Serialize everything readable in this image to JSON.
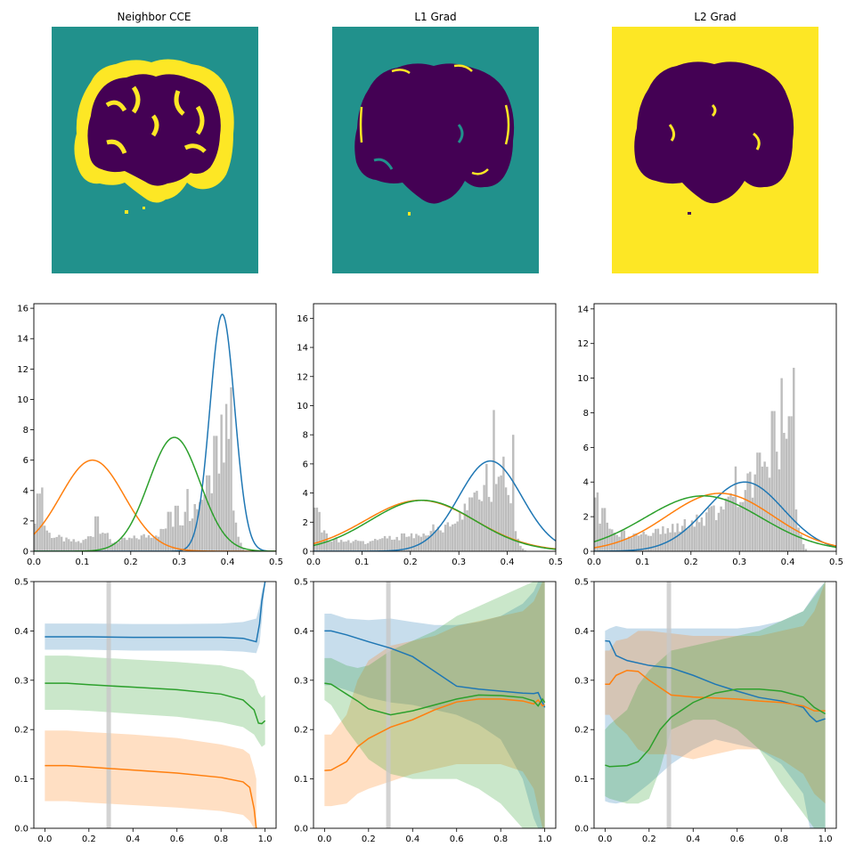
{
  "colors": {
    "blue": "#1f77b4",
    "orange": "#ff7f0e",
    "green": "#2ca02c",
    "hist": "#bdbdbd",
    "viridis_dark": "#440154",
    "viridis_mid": "#21918c",
    "viridis_yellow": "#fde725",
    "vline": "#c8c8c8"
  },
  "chart_data": [
    {
      "type": "image",
      "panel": "img1",
      "title": "Neighbor CCE",
      "background": "teal",
      "brain_edge": "yellow",
      "brain_fill": "purple"
    },
    {
      "type": "image",
      "panel": "img2",
      "title": "L1 Grad",
      "background": "teal",
      "brain_edge": "teal-yellow speckle",
      "brain_fill": "purple"
    },
    {
      "type": "image",
      "panel": "img3",
      "title": "L2 Grad",
      "background": "yellow",
      "brain_edge": "purple",
      "brain_fill": "purple"
    },
    {
      "type": "histogram+gaussians",
      "panel": "h1",
      "xlim": [
        0,
        0.5
      ],
      "ylim": [
        0,
        16.3
      ],
      "xticks": [
        "0.0",
        "0.1",
        "0.2",
        "0.3",
        "0.4",
        "0.5"
      ],
      "yticks": [
        "0",
        "2",
        "4",
        "6",
        "8",
        "10",
        "12",
        "14",
        "16"
      ],
      "gaussians": [
        {
          "color": "blue",
          "mu": 0.389,
          "sigma": 0.0256,
          "peak": 15.6
        },
        {
          "color": "orange",
          "mu": 0.121,
          "sigma": 0.066,
          "peak": 6.0
        },
        {
          "color": "green",
          "mu": 0.29,
          "sigma": 0.053,
          "peak": 7.5
        }
      ],
      "hist_start": [
        [
          0,
          2.2
        ],
        [
          0.01,
          3.1
        ],
        [
          0.02,
          2.0
        ],
        [
          0.03,
          1.2
        ],
        [
          0.04,
          1.0
        ],
        [
          0.05,
          0.9
        ],
        [
          0.07,
          0.7
        ],
        [
          0.1,
          0.6
        ],
        [
          0.14,
          1.6
        ],
        [
          0.16,
          0.6
        ],
        [
          0.2,
          0.8
        ],
        [
          0.26,
          1.2
        ],
        [
          0.28,
          1.8
        ],
        [
          0.3,
          2.0
        ],
        [
          0.32,
          2.4
        ],
        [
          0.34,
          3.3
        ],
        [
          0.36,
          4.4
        ],
        [
          0.38,
          6.0
        ],
        [
          0.4,
          7.5
        ],
        [
          0.41,
          4.0
        ],
        [
          0.42,
          1.5
        ],
        [
          0.43,
          0.3
        ],
        [
          0.44,
          0
        ]
      ],
      "hist_spikes": [
        [
          0.01,
          3.8
        ],
        [
          0.016,
          4.2
        ],
        [
          0.13,
          2.3
        ],
        [
          0.28,
          2.6
        ],
        [
          0.295,
          3.0
        ],
        [
          0.318,
          4.1
        ],
        [
          0.36,
          5.0
        ],
        [
          0.375,
          7.6
        ],
        [
          0.388,
          9.0
        ],
        [
          0.396,
          9.7
        ],
        [
          0.407,
          10.8
        ]
      ]
    },
    {
      "type": "histogram+gaussians",
      "panel": "h2",
      "xlim": [
        0,
        0.5
      ],
      "ylim": [
        0,
        17
      ],
      "xticks": [
        "0.0",
        "0.1",
        "0.2",
        "0.3",
        "0.4",
        "0.5"
      ],
      "yticks": [
        "0",
        "2",
        "4",
        "6",
        "8",
        "10",
        "12",
        "14",
        "16"
      ],
      "gaussians": [
        {
          "color": "blue",
          "mu": 0.365,
          "sigma": 0.065,
          "peak": 6.2
        },
        {
          "color": "orange",
          "mu": 0.22,
          "sigma": 0.113,
          "peak": 3.5
        },
        {
          "color": "green",
          "mu": 0.225,
          "sigma": 0.108,
          "peak": 3.5
        }
      ],
      "hist_start": [
        [
          0,
          2.2
        ],
        [
          0.01,
          1.8
        ],
        [
          0.03,
          0.9
        ],
        [
          0.06,
          0.7
        ],
        [
          0.1,
          0.6
        ],
        [
          0.15,
          0.9
        ],
        [
          0.2,
          1.1
        ],
        [
          0.25,
          1.5
        ],
        [
          0.28,
          1.8
        ],
        [
          0.3,
          2.3
        ],
        [
          0.32,
          3.0
        ],
        [
          0.34,
          3.6
        ],
        [
          0.36,
          4.2
        ],
        [
          0.38,
          5.0
        ],
        [
          0.4,
          4.3
        ],
        [
          0.41,
          2.6
        ],
        [
          0.42,
          1.0
        ],
        [
          0.43,
          0.3
        ],
        [
          0.44,
          0
        ]
      ],
      "hist_spikes": [
        [
          0.005,
          3.0
        ],
        [
          0.012,
          2.7
        ],
        [
          0.325,
          3.7
        ],
        [
          0.357,
          6.0
        ],
        [
          0.374,
          9.7
        ],
        [
          0.393,
          6.5
        ],
        [
          0.414,
          8.0
        ]
      ]
    },
    {
      "type": "histogram+gaussians",
      "panel": "h3",
      "xlim": [
        0,
        0.5
      ],
      "ylim": [
        0,
        14.3
      ],
      "xticks": [
        "0.0",
        "0.1",
        "0.2",
        "0.3",
        "0.4",
        "0.5"
      ],
      "yticks": [
        "0",
        "2",
        "4",
        "6",
        "8",
        "10",
        "12",
        "14"
      ],
      "gaussians": [
        {
          "color": "blue",
          "mu": 0.311,
          "sigma": 0.08,
          "peak": 4.0
        },
        {
          "color": "orange",
          "mu": 0.26,
          "sigma": 0.11,
          "peak": 3.35
        },
        {
          "color": "green",
          "mu": 0.225,
          "sigma": 0.12,
          "peak": 3.2
        }
      ],
      "hist_start": [
        [
          0,
          3.0
        ],
        [
          0.01,
          2.0
        ],
        [
          0.03,
          1.3
        ],
        [
          0.05,
          1.0
        ],
        [
          0.1,
          1.0
        ],
        [
          0.15,
          1.2
        ],
        [
          0.2,
          1.6
        ],
        [
          0.25,
          2.2
        ],
        [
          0.3,
          3.0
        ],
        [
          0.32,
          3.8
        ],
        [
          0.35,
          4.6
        ],
        [
          0.38,
          5.6
        ],
        [
          0.4,
          6.0
        ],
        [
          0.41,
          4.6
        ],
        [
          0.42,
          2.2
        ],
        [
          0.43,
          0.5
        ],
        [
          0.44,
          0
        ]
      ],
      "hist_spikes": [
        [
          0.006,
          3.4
        ],
        [
          0.02,
          2.5
        ],
        [
          0.294,
          4.9
        ],
        [
          0.34,
          5.7
        ],
        [
          0.37,
          8.1
        ],
        [
          0.388,
          10.0
        ],
        [
          0.4,
          6.5
        ],
        [
          0.405,
          7.8
        ],
        [
          0.412,
          10.6
        ]
      ]
    },
    {
      "type": "line+bands",
      "panel": "l1",
      "xlim": [
        -0.05,
        1.05
      ],
      "ylim": [
        0,
        0.5
      ],
      "xticks": [
        "0.0",
        "0.2",
        "0.4",
        "0.6",
        "0.8",
        "1.0"
      ],
      "yticks": [
        "0.0",
        "0.1",
        "0.2",
        "0.3",
        "0.4",
        "0.5"
      ],
      "vline_x": 0.29,
      "series": [
        {
          "color": "blue",
          "x": [
            0,
            0.2,
            0.4,
            0.6,
            0.8,
            0.9,
            0.96,
            0.975,
            0.985,
            1.0
          ],
          "y": [
            0.388,
            0.388,
            0.387,
            0.387,
            0.387,
            0.385,
            0.378,
            0.415,
            0.46,
            0.5
          ],
          "lo": [
            0.362,
            0.362,
            0.36,
            0.36,
            0.36,
            0.358,
            0.355,
            0.375,
            0.42,
            0.5
          ],
          "hi": [
            0.415,
            0.415,
            0.414,
            0.414,
            0.415,
            0.418,
            0.425,
            0.45,
            0.48,
            0.5
          ]
        },
        {
          "color": "green",
          "x": [
            0,
            0.1,
            0.2,
            0.4,
            0.6,
            0.8,
            0.9,
            0.95,
            0.97,
            0.985,
            1.0
          ],
          "y": [
            0.294,
            0.294,
            0.291,
            0.286,
            0.281,
            0.272,
            0.26,
            0.24,
            0.213,
            0.212,
            0.218
          ],
          "lo": [
            0.24,
            0.24,
            0.238,
            0.232,
            0.226,
            0.215,
            0.205,
            0.19,
            0.175,
            0.165,
            0.17
          ],
          "hi": [
            0.35,
            0.35,
            0.347,
            0.342,
            0.337,
            0.33,
            0.32,
            0.3,
            0.275,
            0.265,
            0.27
          ]
        },
        {
          "color": "orange",
          "x": [
            0,
            0.1,
            0.2,
            0.4,
            0.6,
            0.8,
            0.9,
            0.93,
            0.95,
            0.96
          ],
          "y": [
            0.127,
            0.127,
            0.124,
            0.118,
            0.112,
            0.103,
            0.094,
            0.083,
            0.04,
            0.0
          ],
          "lo": [
            0.055,
            0.055,
            0.052,
            0.047,
            0.042,
            0.035,
            0.027,
            0.015,
            0.0,
            0.0
          ],
          "hi": [
            0.198,
            0.198,
            0.195,
            0.19,
            0.183,
            0.17,
            0.16,
            0.15,
            0.12,
            0.1
          ]
        }
      ]
    },
    {
      "type": "line+bands",
      "panel": "l2",
      "xlim": [
        -0.05,
        1.05
      ],
      "ylim": [
        0,
        0.5
      ],
      "xticks": [
        "0.0",
        "0.2",
        "0.4",
        "0.6",
        "0.8",
        "1.0"
      ],
      "yticks": [
        "0.0",
        "0.1",
        "0.2",
        "0.3",
        "0.4",
        "0.5"
      ],
      "vline_x": 0.29,
      "series": [
        {
          "color": "blue",
          "x": [
            0,
            0.03,
            0.1,
            0.2,
            0.3,
            0.4,
            0.5,
            0.6,
            0.7,
            0.8,
            0.9,
            0.95,
            0.97,
            0.99,
            1.0
          ],
          "y": [
            0.4,
            0.4,
            0.392,
            0.378,
            0.365,
            0.348,
            0.318,
            0.288,
            0.282,
            0.278,
            0.274,
            0.273,
            0.275,
            0.255,
            0.245
          ],
          "lo": [
            0.29,
            0.29,
            0.28,
            0.265,
            0.255,
            0.25,
            0.24,
            0.23,
            0.21,
            0.18,
            0.1,
            0.02,
            0.0,
            0.0,
            0.0
          ],
          "hi": [
            0.435,
            0.435,
            0.425,
            0.422,
            0.425,
            0.418,
            0.412,
            0.412,
            0.418,
            0.43,
            0.455,
            0.48,
            0.5,
            0.5,
            0.5
          ]
        },
        {
          "color": "orange",
          "x": [
            0,
            0.03,
            0.1,
            0.15,
            0.2,
            0.3,
            0.4,
            0.5,
            0.6,
            0.7,
            0.8,
            0.9,
            0.95,
            0.97,
            0.99,
            1.0
          ],
          "y": [
            0.117,
            0.118,
            0.135,
            0.165,
            0.182,
            0.205,
            0.22,
            0.24,
            0.256,
            0.262,
            0.262,
            0.258,
            0.252,
            0.26,
            0.248,
            0.25
          ],
          "lo": [
            0.045,
            0.045,
            0.05,
            0.07,
            0.08,
            0.095,
            0.11,
            0.12,
            0.13,
            0.13,
            0.13,
            0.115,
            0.08,
            0.04,
            0.0,
            0.0
          ],
          "hi": [
            0.19,
            0.19,
            0.23,
            0.3,
            0.34,
            0.37,
            0.38,
            0.39,
            0.41,
            0.42,
            0.43,
            0.44,
            0.46,
            0.48,
            0.5,
            0.5
          ]
        },
        {
          "color": "green",
          "x": [
            0,
            0.03,
            0.1,
            0.15,
            0.2,
            0.3,
            0.4,
            0.5,
            0.6,
            0.7,
            0.8,
            0.9,
            0.95,
            0.97,
            0.99,
            1.0
          ],
          "y": [
            0.294,
            0.292,
            0.272,
            0.258,
            0.242,
            0.23,
            0.238,
            0.25,
            0.262,
            0.27,
            0.269,
            0.265,
            0.258,
            0.248,
            0.262,
            0.255
          ],
          "lo": [
            0.26,
            0.25,
            0.2,
            0.17,
            0.14,
            0.11,
            0.1,
            0.1,
            0.1,
            0.08,
            0.05,
            0.0,
            0.0,
            0.0,
            0.0,
            0.0
          ],
          "hi": [
            0.345,
            0.345,
            0.33,
            0.325,
            0.33,
            0.36,
            0.38,
            0.4,
            0.43,
            0.45,
            0.47,
            0.49,
            0.5,
            0.5,
            0.5,
            0.5
          ]
        }
      ]
    },
    {
      "type": "line+bands",
      "panel": "l3",
      "xlim": [
        -0.05,
        1.05
      ],
      "ylim": [
        0,
        0.5
      ],
      "xticks": [
        "0.0",
        "0.2",
        "0.4",
        "0.6",
        "0.8",
        "1.0"
      ],
      "yticks": [
        "0.0",
        "0.1",
        "0.2",
        "0.3",
        "0.4",
        "0.5"
      ],
      "vline_x": 0.29,
      "series": [
        {
          "color": "blue",
          "x": [
            0,
            0.02,
            0.05,
            0.1,
            0.2,
            0.3,
            0.4,
            0.5,
            0.6,
            0.7,
            0.8,
            0.9,
            0.93,
            0.96,
            1.0
          ],
          "y": [
            0.38,
            0.379,
            0.35,
            0.34,
            0.33,
            0.325,
            0.31,
            0.292,
            0.278,
            0.265,
            0.258,
            0.245,
            0.228,
            0.216,
            0.222
          ],
          "lo": [
            0.055,
            0.052,
            0.05,
            0.055,
            0.09,
            0.13,
            0.16,
            0.18,
            0.17,
            0.16,
            0.13,
            0.07,
            0.0,
            0.0,
            0.0
          ],
          "hi": [
            0.4,
            0.405,
            0.41,
            0.405,
            0.405,
            0.405,
            0.405,
            0.405,
            0.405,
            0.41,
            0.42,
            0.44,
            0.46,
            0.48,
            0.5
          ]
        },
        {
          "color": "orange",
          "x": [
            0,
            0.02,
            0.05,
            0.1,
            0.15,
            0.2,
            0.3,
            0.4,
            0.5,
            0.6,
            0.7,
            0.8,
            0.9,
            0.95,
            1.0
          ],
          "y": [
            0.292,
            0.292,
            0.31,
            0.32,
            0.318,
            0.3,
            0.27,
            0.266,
            0.264,
            0.262,
            0.258,
            0.255,
            0.248,
            0.238,
            0.238
          ],
          "lo": [
            0.23,
            0.23,
            0.21,
            0.19,
            0.16,
            0.15,
            0.15,
            0.14,
            0.15,
            0.16,
            0.16,
            0.14,
            0.11,
            0.07,
            0.05
          ],
          "hi": [
            0.36,
            0.36,
            0.38,
            0.385,
            0.4,
            0.4,
            0.395,
            0.39,
            0.39,
            0.39,
            0.39,
            0.4,
            0.41,
            0.44,
            0.5
          ]
        },
        {
          "color": "green",
          "x": [
            0,
            0.02,
            0.1,
            0.15,
            0.2,
            0.25,
            0.3,
            0.4,
            0.5,
            0.6,
            0.7,
            0.8,
            0.9,
            0.95,
            1.0
          ],
          "y": [
            0.128,
            0.125,
            0.127,
            0.135,
            0.16,
            0.2,
            0.225,
            0.255,
            0.274,
            0.282,
            0.282,
            0.278,
            0.266,
            0.245,
            0.232
          ],
          "lo": [
            0.065,
            0.06,
            0.05,
            0.05,
            0.06,
            0.12,
            0.2,
            0.22,
            0.22,
            0.2,
            0.16,
            0.09,
            0.03,
            0.0,
            0.0
          ],
          "hi": [
            0.2,
            0.21,
            0.24,
            0.29,
            0.32,
            0.34,
            0.36,
            0.37,
            0.38,
            0.39,
            0.4,
            0.42,
            0.44,
            0.47,
            0.5
          ]
        }
      ]
    }
  ]
}
